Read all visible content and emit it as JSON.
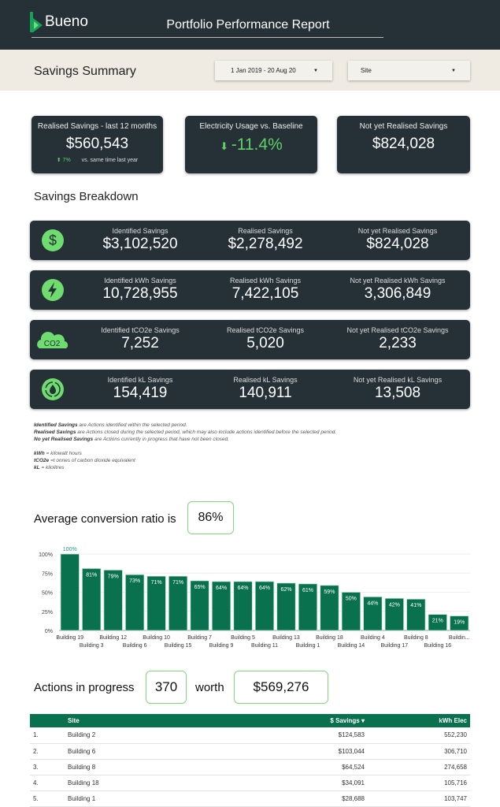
{
  "header": {
    "logo": "Bueno",
    "title": "Portfolio Performance Report"
  },
  "filters": {
    "section_title": "Savings Summary",
    "date_range": "1 Jan 2019 - 20 Aug 20",
    "site": "Site"
  },
  "kpis": [
    {
      "label": "Realised Savings - last 12 months",
      "value": "$560,543",
      "change": "7%",
      "change_note": "vs. same time last year"
    },
    {
      "label": "Electricity Usage vs. Baseline",
      "value": "-11.4%"
    },
    {
      "label": "Not yet Realised Savings",
      "value": "$824,028"
    }
  ],
  "breakdown": {
    "title": "Savings Breakdown",
    "rows": [
      {
        "icon": "dollar-icon",
        "cols": [
          {
            "label": "Identified Savings",
            "value": "$3,102,520"
          },
          {
            "label": "Realised Savings",
            "value": "$2,278,492"
          },
          {
            "label": "Not yet Realised Savings",
            "value": "$824,028"
          }
        ]
      },
      {
        "icon": "lightning-icon",
        "cols": [
          {
            "label": "Identified kWh Savings",
            "value": "10,728,955"
          },
          {
            "label": "Realised kWh Savings",
            "value": "7,422,105"
          },
          {
            "label": "Not yet Realised kWh Savings",
            "value": "3,306,849"
          }
        ]
      },
      {
        "icon": "co2-cloud-icon",
        "cols": [
          {
            "label": "Identified tCO2e Savings",
            "value": "7,252"
          },
          {
            "label": "Realised tCO2e Savings",
            "value": "5,020"
          },
          {
            "label": "Not yet Realised tCO2e Savings",
            "value": "2,233"
          }
        ]
      },
      {
        "icon": "water-recycle-icon",
        "cols": [
          {
            "label": "Identified kL Savings",
            "value": "154,419"
          },
          {
            "label": "Realised kL Savings",
            "value": "140,911"
          },
          {
            "label": "Not yet Realised kL Savings",
            "value": "13,508"
          }
        ]
      }
    ]
  },
  "notes": {
    "n1b": "Identified Savings",
    "n1": " are Actions identified within the selected period.",
    "n2b": "Realised Savings",
    "n2": " are Actions closed during the selected period, which may also include actions identified before the selected period.",
    "n3b": "No yet Realised Savings",
    "n3": " are Actions currently in progress that have not been closed.",
    "g1b": "kWh",
    "g1": " = kilowatt hours",
    "g2b": "tCO2e",
    "g2": " =t onnes of carbon dioxide equivalent",
    "g3b": "kL",
    "g3": " = kilolitres"
  },
  "conversion": {
    "label": "Average conversion ratio is",
    "value": "86%"
  },
  "chart_data": {
    "type": "bar",
    "ylim": [
      0,
      100
    ],
    "yticks": [
      "0%",
      "25%",
      "50%",
      "75%",
      "100%"
    ],
    "categories": [
      "Building 19",
      "Building 3",
      "Building 12",
      "Building 6",
      "Building 10",
      "Building 15",
      "Building 7",
      "Building 9",
      "Building 5",
      "Building 11",
      "Building 13",
      "Building 1",
      "Building 18",
      "Building 14",
      "Building 4",
      "Building 17",
      "Building 8",
      "Building 16",
      "Buildin..."
    ],
    "values": [
      100,
      81,
      79,
      73,
      71,
      71,
      65,
      64,
      64,
      64,
      62,
      61,
      59,
      50,
      44,
      42,
      41,
      21,
      19
    ],
    "labels": [
      "100%",
      "81%",
      "79%",
      "73%",
      "71%",
      "71%",
      "65%",
      "64%",
      "64%",
      "64%",
      "62%",
      "61%",
      "59%",
      "50%",
      "44%",
      "42%",
      "41%",
      "21%",
      "19%"
    ]
  },
  "actions": {
    "label": "Actions in progress",
    "count": "370",
    "worth_label": "worth",
    "worth": "$569,276"
  },
  "table": {
    "headers": [
      "",
      "Site",
      "$ Savings ▾",
      "kWh Elec"
    ],
    "rows": [
      [
        "1.",
        "Building 2",
        "$124,583",
        "552,230"
      ],
      [
        "2.",
        "Building 6",
        "$103,044",
        "306,710"
      ],
      [
        "3.",
        "Building 8",
        "$64,524",
        "274,658"
      ],
      [
        "4.",
        "Building 18",
        "$34,091",
        "105,716"
      ],
      [
        "5.",
        "Building 1",
        "$28,688",
        "103,747"
      ]
    ]
  }
}
